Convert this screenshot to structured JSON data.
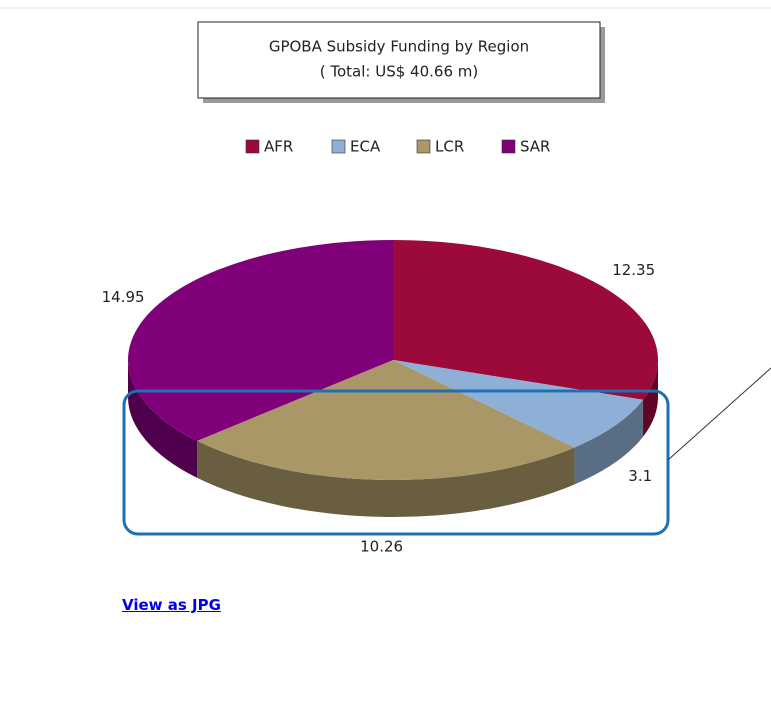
{
  "chart_data": {
    "type": "pie",
    "title": "GPOBA Subsidy Funding by Region",
    "subtitle": "( Total: US$  40.66 m)",
    "categories": [
      "AFR",
      "ECA",
      "LCR",
      "SAR"
    ],
    "values": [
      12.35,
      3.1,
      10.26,
      14.95
    ],
    "colors": [
      "#9b0a3a",
      "#8fb0d6",
      "#a99767",
      "#80007a"
    ],
    "legend": "top"
  },
  "link": "View as JPG"
}
